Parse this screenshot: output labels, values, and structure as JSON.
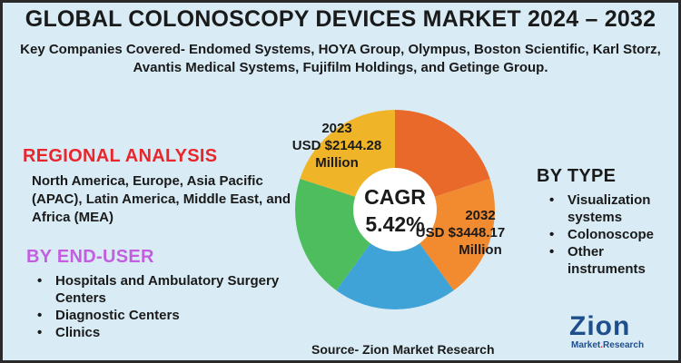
{
  "title": "GLOBAL COLONOSCOPY DEVICES MARKET 2024 – 2032",
  "companies": {
    "line1": "Key Companies Covered- Endomed Systems, HOYA Group, Olympus, Boston Scientific, Karl Storz,",
    "line2": "Avantis Medical Systems, Fujifilm Holdings, and Getinge Group."
  },
  "regional": {
    "heading": "REGIONAL ANALYSIS",
    "text": "North America, Europe, Asia Pacific (APAC), Latin America, Middle East, and Africa (MEA)"
  },
  "end_user": {
    "heading": "BY END-USER",
    "items": [
      "Hospitals and Ambulatory Surgery Centers",
      "Diagnostic Centers",
      "Clinics"
    ]
  },
  "by_type": {
    "heading": "BY TYPE",
    "items": [
      "Visualization systems",
      "Colonoscope",
      "Other instruments"
    ]
  },
  "donut": {
    "segment_colors": [
      "#e8692a",
      "#f28a30",
      "#3fa3d8",
      "#4dbd5e",
      "#f0b429"
    ],
    "value_2023": {
      "year": "2023",
      "amount": "USD $2144.28",
      "unit": "Million"
    },
    "value_2032": {
      "year": "2032",
      "amount": "USD $3448.17",
      "unit": "Million"
    },
    "cagr_label": "CAGR",
    "cagr_value": "5.42%"
  },
  "source": "Source- Zion Market Research",
  "logo": {
    "word": "Zion",
    "sub_main": "Market",
    "sub_dot": ".",
    "sub_end": "Research"
  }
}
